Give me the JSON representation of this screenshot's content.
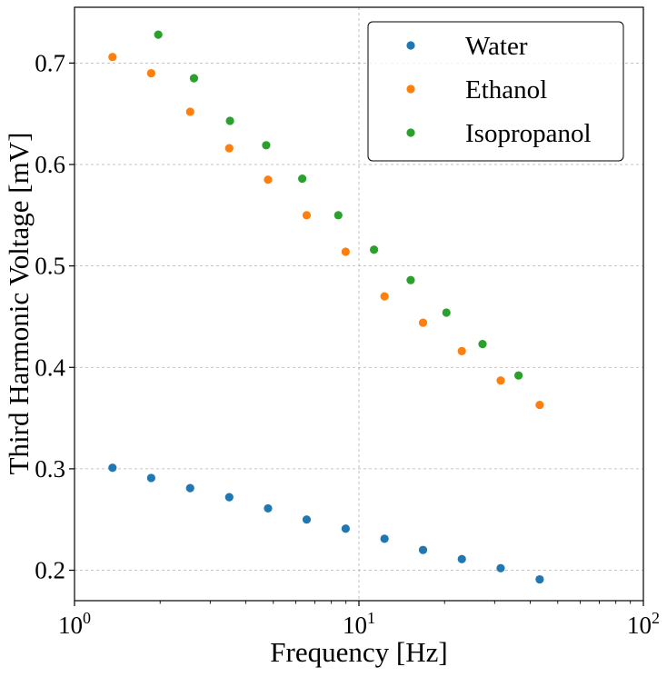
{
  "chart_data": {
    "type": "scatter",
    "xscale": "log",
    "xlim": [
      1,
      100
    ],
    "ylim": [
      0.17,
      0.755
    ],
    "xlabel": "Frequency [Hz]",
    "ylabel": "Third Harmonic Voltage [mV]",
    "grid": true,
    "legend_position": "top-right",
    "x_ticks": [
      {
        "value": 1,
        "base": "10",
        "exp": "0"
      },
      {
        "value": 10,
        "base": "10",
        "exp": "1"
      },
      {
        "value": 100,
        "base": "10",
        "exp": "2"
      }
    ],
    "y_ticks": [
      {
        "value": 0.2,
        "label": "0.2"
      },
      {
        "value": 0.3,
        "label": "0.3"
      },
      {
        "value": 0.4,
        "label": "0.4"
      },
      {
        "value": 0.5,
        "label": "0.5"
      },
      {
        "value": 0.6,
        "label": "0.6"
      },
      {
        "value": 0.7,
        "label": "0.7"
      }
    ],
    "series": [
      {
        "name": "Water",
        "color": "#1f77b4",
        "x": [
          1.36,
          1.86,
          2.55,
          3.5,
          4.79,
          6.55,
          8.98,
          12.3,
          16.8,
          23.0,
          31.5,
          43.2
        ],
        "y": [
          0.301,
          0.291,
          0.281,
          0.272,
          0.261,
          0.25,
          0.241,
          0.231,
          0.22,
          0.211,
          0.202,
          0.191
        ]
      },
      {
        "name": "Ethanol",
        "color": "#ff7f0e",
        "x": [
          1.36,
          1.86,
          2.55,
          3.5,
          4.79,
          6.55,
          8.98,
          12.3,
          16.8,
          23.0,
          31.5,
          43.2
        ],
        "y": [
          0.706,
          0.69,
          0.652,
          0.616,
          0.585,
          0.55,
          0.514,
          0.47,
          0.444,
          0.416,
          0.387,
          0.363
        ]
      },
      {
        "name": "Isopropanol",
        "color": "#2ca02c",
        "x": [
          1.97,
          2.63,
          3.52,
          4.72,
          6.32,
          8.46,
          11.3,
          15.2,
          20.3,
          27.2,
          36.4
        ],
        "y": [
          0.728,
          0.685,
          0.643,
          0.619,
          0.586,
          0.55,
          0.516,
          0.486,
          0.454,
          0.423,
          0.392
        ]
      }
    ]
  }
}
